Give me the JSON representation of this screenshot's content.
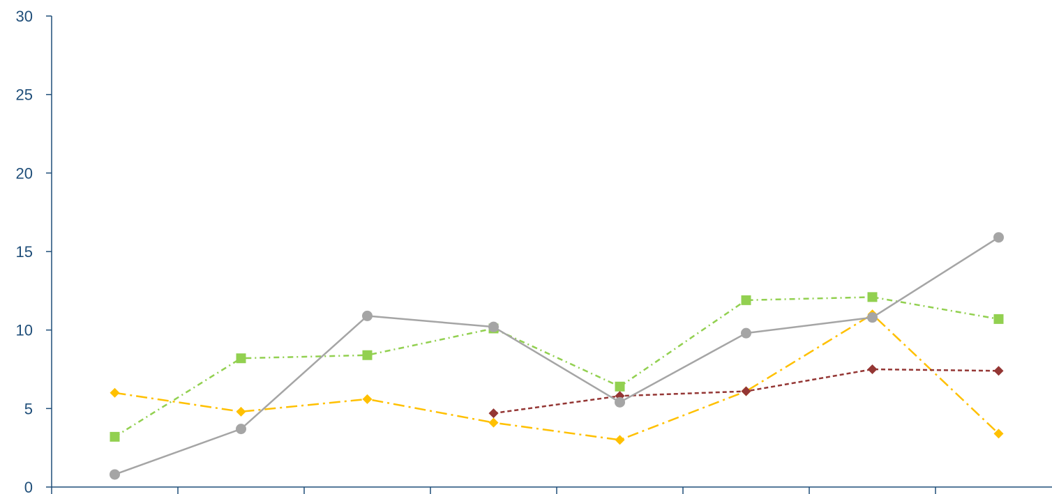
{
  "chart_data": {
    "type": "line",
    "title": "",
    "xlabel": "",
    "ylabel": "",
    "ylim": [
      0,
      30
    ],
    "yticks": [
      "0",
      "5",
      "10",
      "15",
      "20",
      "25",
      "30"
    ],
    "categories": [
      "",
      "",
      "",
      "",
      "",
      "",
      "",
      ""
    ],
    "grid": false,
    "legend": "none",
    "colors": {
      "axis": "#1F4E79",
      "tick_label": "#1F4E79"
    },
    "series": [
      {
        "color": "#92D050",
        "line_style": "dash-dot",
        "marker": "square",
        "values": [
          3.2,
          8.2,
          8.4,
          10.1,
          6.4,
          11.9,
          12.1,
          10.7
        ]
      },
      {
        "color": "#FFC000",
        "line_style": "long-dash-dot",
        "marker": "diamond",
        "values": [
          6.0,
          4.8,
          5.6,
          4.1,
          3.0,
          6.1,
          11.0,
          3.4
        ]
      },
      {
        "color": "#943634",
        "line_style": "dashed",
        "marker": "diamond",
        "values": [
          null,
          null,
          null,
          4.7,
          5.8,
          6.1,
          7.5,
          7.4
        ]
      },
      {
        "color": "#A5A5A5",
        "line_style": "solid",
        "marker": "circle",
        "values": [
          0.8,
          3.7,
          10.9,
          10.2,
          5.4,
          9.8,
          10.8,
          15.9
        ]
      }
    ]
  }
}
